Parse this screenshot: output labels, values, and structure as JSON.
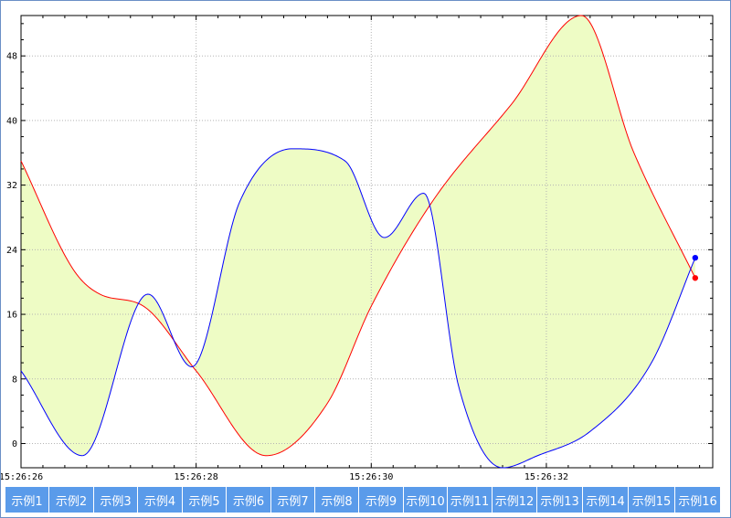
{
  "chart_data": {
    "type": "area",
    "title": "",
    "xlabel": "",
    "ylabel": "",
    "x_tick_labels": [
      "15:26:26",
      "15:26:28",
      "15:26:30",
      "15:26:32"
    ],
    "x_tick_values": [
      0,
      2,
      4,
      6
    ],
    "xlim": [
      0,
      7.9
    ],
    "ylim": [
      -3,
      53
    ],
    "y_ticks": [
      0,
      8,
      16,
      24,
      32,
      40,
      48
    ],
    "grid": true,
    "fill_between_series": true,
    "fill_color": "#eefcc5",
    "series": [
      {
        "color": "#ff0000",
        "x": [
          0,
          0.6,
          0.9,
          1.4,
          2.0,
          2.8,
          3.5,
          4.0,
          4.7,
          5.6,
          6.4,
          7.0,
          7.7
        ],
        "values": [
          35,
          21.5,
          18.5,
          17,
          9,
          -1.5,
          5,
          17,
          30,
          42,
          53,
          36,
          20.5
        ]
      },
      {
        "color": "#0000ff",
        "x": [
          0,
          0.7,
          1.45,
          1.95,
          2.5,
          3.1,
          3.7,
          4.15,
          4.6,
          5.0,
          5.5,
          5.9,
          6.5,
          7.2,
          7.7
        ],
        "values": [
          9,
          -1.5,
          18.5,
          9.5,
          30,
          36.5,
          35,
          25.5,
          31,
          7,
          -3,
          -1.5,
          1.5,
          10,
          23
        ]
      }
    ]
  },
  "tabs": [
    "示例1",
    "示例2",
    "示例3",
    "示例4",
    "示例5",
    "示例6",
    "示例7",
    "示例8",
    "示例9",
    "示例10",
    "示例11",
    "示例12",
    "示例13",
    "示例14",
    "示例15",
    "示例16"
  ],
  "colors": {
    "tab_bg": "#5a9bea",
    "tab_text": "#ffffff",
    "window_border": "#6a8fc6"
  }
}
